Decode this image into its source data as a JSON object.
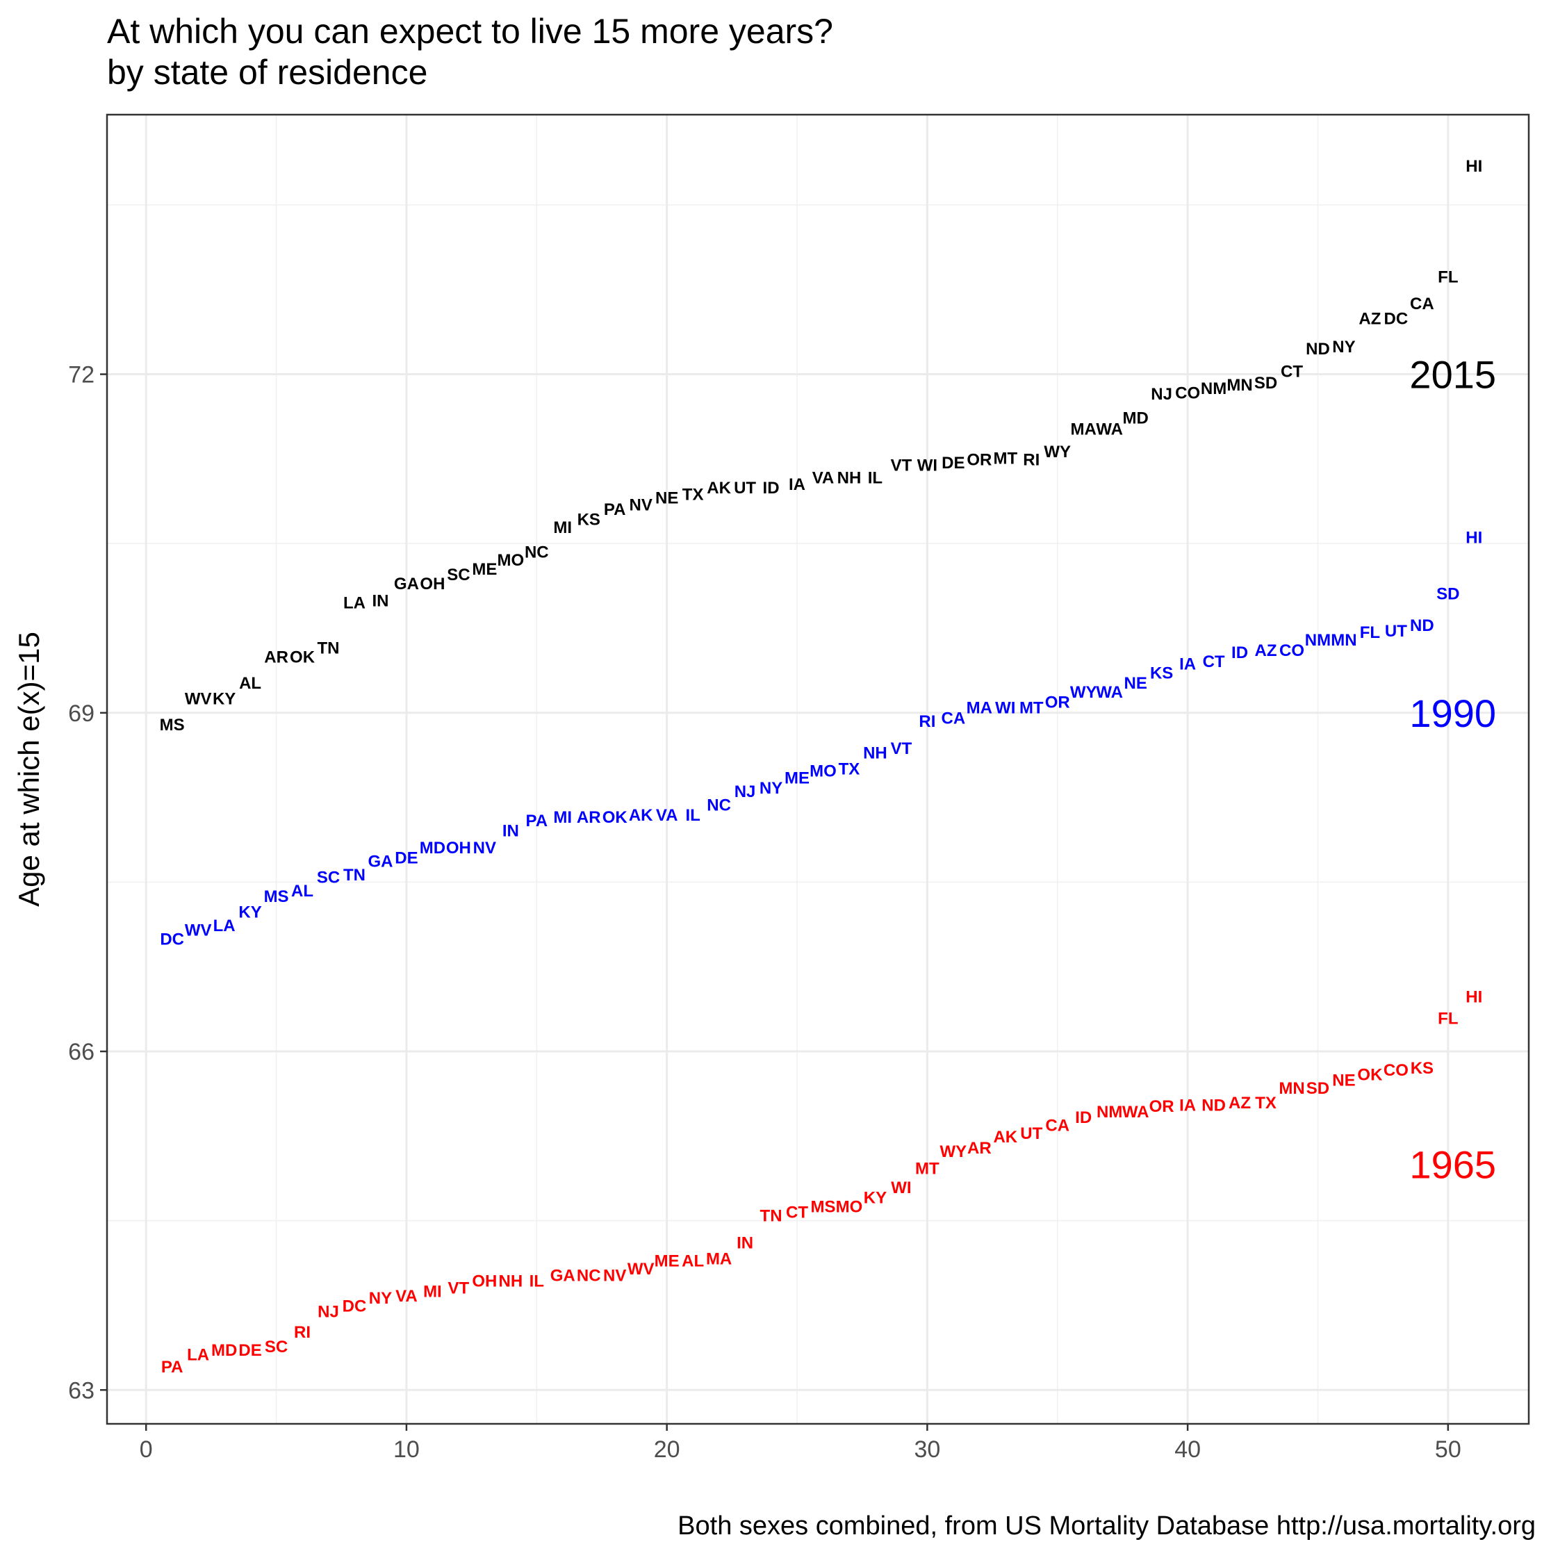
{
  "chart_data": {
    "type": "scatter",
    "title": "At which you can expect to live 15 more years?",
    "subtitle": "by state of residence",
    "xlabel": "",
    "ylabel": "Age at which e(x)=15",
    "caption": "Both sexes combined, from US Mortality Database http://usa.mortality.org",
    "xlim": [
      -1.5,
      53.1
    ],
    "ylim": [
      62.7,
      74.3
    ],
    "x_ticks": [
      0,
      10,
      20,
      30,
      40,
      50
    ],
    "y_ticks": [
      63,
      66,
      69,
      72
    ],
    "grid": true,
    "colors": {
      "1965": "#ff0000",
      "1990": "#0000ff",
      "2015": "#000000"
    },
    "series": [
      {
        "name": "2015",
        "label_value": 72.0,
        "points": [
          {
            "state": "MS",
            "x": 1,
            "y": 68.9
          },
          {
            "state": "WV",
            "x": 2,
            "y": 69.13
          },
          {
            "state": "KY",
            "x": 3,
            "y": 69.13
          },
          {
            "state": "AL",
            "x": 4,
            "y": 69.27
          },
          {
            "state": "AR",
            "x": 5,
            "y": 69.5
          },
          {
            "state": "OK",
            "x": 6,
            "y": 69.5
          },
          {
            "state": "TN",
            "x": 7,
            "y": 69.58
          },
          {
            "state": "LA",
            "x": 8,
            "y": 69.98
          },
          {
            "state": "IN",
            "x": 9,
            "y": 70.0
          },
          {
            "state": "GA",
            "x": 10,
            "y": 70.15
          },
          {
            "state": "OH",
            "x": 11,
            "y": 70.15
          },
          {
            "state": "SC",
            "x": 12,
            "y": 70.23
          },
          {
            "state": "ME",
            "x": 13,
            "y": 70.28
          },
          {
            "state": "MO",
            "x": 14,
            "y": 70.36
          },
          {
            "state": "NC",
            "x": 15,
            "y": 70.43
          },
          {
            "state": "MI",
            "x": 16,
            "y": 70.65
          },
          {
            "state": "KS",
            "x": 17,
            "y": 70.72
          },
          {
            "state": "PA",
            "x": 18,
            "y": 70.81
          },
          {
            "state": "NV",
            "x": 19,
            "y": 70.85
          },
          {
            "state": "NE",
            "x": 20,
            "y": 70.91
          },
          {
            "state": "TX",
            "x": 21,
            "y": 70.94
          },
          {
            "state": "AK",
            "x": 22,
            "y": 71.0
          },
          {
            "state": "UT",
            "x": 23,
            "y": 71.0
          },
          {
            "state": "ID",
            "x": 24,
            "y": 71.0
          },
          {
            "state": "IA",
            "x": 25,
            "y": 71.03
          },
          {
            "state": "VA",
            "x": 26,
            "y": 71.09
          },
          {
            "state": "NH",
            "x": 27,
            "y": 71.09
          },
          {
            "state": "IL",
            "x": 28,
            "y": 71.09
          },
          {
            "state": "VT",
            "x": 29,
            "y": 71.2
          },
          {
            "state": "WI",
            "x": 30,
            "y": 71.2
          },
          {
            "state": "DE",
            "x": 31,
            "y": 71.22
          },
          {
            "state": "OR",
            "x": 32,
            "y": 71.25
          },
          {
            "state": "MT",
            "x": 33,
            "y": 71.26
          },
          {
            "state": "RI",
            "x": 34,
            "y": 71.25
          },
          {
            "state": "WY",
            "x": 35,
            "y": 71.32
          },
          {
            "state": "MA",
            "x": 36,
            "y": 71.52
          },
          {
            "state": "WA",
            "x": 37,
            "y": 71.52
          },
          {
            "state": "MD",
            "x": 38,
            "y": 71.62
          },
          {
            "state": "NJ",
            "x": 39,
            "y": 71.83
          },
          {
            "state": "CO",
            "x": 40,
            "y": 71.84
          },
          {
            "state": "NM",
            "x": 41,
            "y": 71.88
          },
          {
            "state": "MN",
            "x": 42,
            "y": 71.91
          },
          {
            "state": "SD",
            "x": 43,
            "y": 71.93
          },
          {
            "state": "CT",
            "x": 44,
            "y": 72.03
          },
          {
            "state": "ND",
            "x": 45,
            "y": 72.23
          },
          {
            "state": "NY",
            "x": 46,
            "y": 72.25
          },
          {
            "state": "AZ",
            "x": 47,
            "y": 72.5
          },
          {
            "state": "DC",
            "x": 48,
            "y": 72.5
          },
          {
            "state": "CA",
            "x": 49,
            "y": 72.63
          },
          {
            "state": "FL",
            "x": 50,
            "y": 72.87
          },
          {
            "state": "HI",
            "x": 51,
            "y": 73.85
          }
        ]
      },
      {
        "name": "1990",
        "label_value": 69.0,
        "points": [
          {
            "state": "DC",
            "x": 1,
            "y": 67.0
          },
          {
            "state": "WV",
            "x": 2,
            "y": 67.08
          },
          {
            "state": "LA",
            "x": 3,
            "y": 67.12
          },
          {
            "state": "KY",
            "x": 4,
            "y": 67.24
          },
          {
            "state": "MS",
            "x": 5,
            "y": 67.38
          },
          {
            "state": "AL",
            "x": 6,
            "y": 67.43
          },
          {
            "state": "SC",
            "x": 7,
            "y": 67.55
          },
          {
            "state": "TN",
            "x": 8,
            "y": 67.57
          },
          {
            "state": "GA",
            "x": 9,
            "y": 67.69
          },
          {
            "state": "DE",
            "x": 10,
            "y": 67.72
          },
          {
            "state": "MD",
            "x": 11,
            "y": 67.81
          },
          {
            "state": "OH",
            "x": 12,
            "y": 67.81
          },
          {
            "state": "NV",
            "x": 13,
            "y": 67.81
          },
          {
            "state": "IN",
            "x": 14,
            "y": 67.96
          },
          {
            "state": "PA",
            "x": 15,
            "y": 68.05
          },
          {
            "state": "MI",
            "x": 16,
            "y": 68.08
          },
          {
            "state": "AR",
            "x": 17,
            "y": 68.08
          },
          {
            "state": "OK",
            "x": 18,
            "y": 68.08
          },
          {
            "state": "AK",
            "x": 19,
            "y": 68.1
          },
          {
            "state": "VA",
            "x": 20,
            "y": 68.1
          },
          {
            "state": "IL",
            "x": 21,
            "y": 68.1
          },
          {
            "state": "NC",
            "x": 22,
            "y": 68.19
          },
          {
            "state": "NJ",
            "x": 23,
            "y": 68.31
          },
          {
            "state": "NY",
            "x": 24,
            "y": 68.34
          },
          {
            "state": "ME",
            "x": 25,
            "y": 68.43
          },
          {
            "state": "MO",
            "x": 26,
            "y": 68.49
          },
          {
            "state": "TX",
            "x": 27,
            "y": 68.51
          },
          {
            "state": "NH",
            "x": 28,
            "y": 68.65
          },
          {
            "state": "VT",
            "x": 29,
            "y": 68.69
          },
          {
            "state": "RI",
            "x": 30,
            "y": 68.93
          },
          {
            "state": "CA",
            "x": 31,
            "y": 68.96
          },
          {
            "state": "MA",
            "x": 32,
            "y": 69.05
          },
          {
            "state": "WI",
            "x": 33,
            "y": 69.05
          },
          {
            "state": "MT",
            "x": 34,
            "y": 69.05
          },
          {
            "state": "OR",
            "x": 35,
            "y": 69.1
          },
          {
            "state": "WY",
            "x": 36,
            "y": 69.19
          },
          {
            "state": "WA",
            "x": 37,
            "y": 69.19
          },
          {
            "state": "NE",
            "x": 38,
            "y": 69.27
          },
          {
            "state": "KS",
            "x": 39,
            "y": 69.36
          },
          {
            "state": "IA",
            "x": 40,
            "y": 69.44
          },
          {
            "state": "CT",
            "x": 41,
            "y": 69.46
          },
          {
            "state": "ID",
            "x": 42,
            "y": 69.54
          },
          {
            "state": "AZ",
            "x": 43,
            "y": 69.56
          },
          {
            "state": "CO",
            "x": 44,
            "y": 69.56
          },
          {
            "state": "NM",
            "x": 45,
            "y": 69.65
          },
          {
            "state": "MN",
            "x": 46,
            "y": 69.65
          },
          {
            "state": "FL",
            "x": 47,
            "y": 69.72
          },
          {
            "state": "UT",
            "x": 48,
            "y": 69.73
          },
          {
            "state": "ND",
            "x": 49,
            "y": 69.78
          },
          {
            "state": "SD",
            "x": 50,
            "y": 70.06
          },
          {
            "state": "HI",
            "x": 51,
            "y": 70.56
          }
        ]
      },
      {
        "name": "1965",
        "label_value": 65.0,
        "points": [
          {
            "state": "PA",
            "x": 1,
            "y": 63.21
          },
          {
            "state": "LA",
            "x": 2,
            "y": 63.32
          },
          {
            "state": "MD",
            "x": 3,
            "y": 63.36
          },
          {
            "state": "DE",
            "x": 4,
            "y": 63.36
          },
          {
            "state": "SC",
            "x": 5,
            "y": 63.39
          },
          {
            "state": "RI",
            "x": 6,
            "y": 63.52
          },
          {
            "state": "NJ",
            "x": 7,
            "y": 63.7
          },
          {
            "state": "DC",
            "x": 8,
            "y": 63.75
          },
          {
            "state": "NY",
            "x": 9,
            "y": 63.82
          },
          {
            "state": "VA",
            "x": 10,
            "y": 63.84
          },
          {
            "state": "MI",
            "x": 11,
            "y": 63.88
          },
          {
            "state": "VT",
            "x": 12,
            "y": 63.91
          },
          {
            "state": "OH",
            "x": 13,
            "y": 63.97
          },
          {
            "state": "NH",
            "x": 14,
            "y": 63.97
          },
          {
            "state": "IL",
            "x": 15,
            "y": 63.97
          },
          {
            "state": "GA",
            "x": 16,
            "y": 64.02
          },
          {
            "state": "NC",
            "x": 17,
            "y": 64.02
          },
          {
            "state": "NV",
            "x": 18,
            "y": 64.02
          },
          {
            "state": "WV",
            "x": 19,
            "y": 64.08
          },
          {
            "state": "ME",
            "x": 20,
            "y": 64.15
          },
          {
            "state": "AL",
            "x": 21,
            "y": 64.15
          },
          {
            "state": "MA",
            "x": 22,
            "y": 64.17
          },
          {
            "state": "IN",
            "x": 23,
            "y": 64.31
          },
          {
            "state": "TN",
            "x": 24,
            "y": 64.55
          },
          {
            "state": "CT",
            "x": 25,
            "y": 64.58
          },
          {
            "state": "MS",
            "x": 26,
            "y": 64.63
          },
          {
            "state": "MO",
            "x": 27,
            "y": 64.63
          },
          {
            "state": "KY",
            "x": 28,
            "y": 64.71
          },
          {
            "state": "WI",
            "x": 29,
            "y": 64.8
          },
          {
            "state": "MT",
            "x": 30,
            "y": 64.97
          },
          {
            "state": "WY",
            "x": 31,
            "y": 65.12
          },
          {
            "state": "AR",
            "x": 32,
            "y": 65.15
          },
          {
            "state": "AK",
            "x": 33,
            "y": 65.25
          },
          {
            "state": "UT",
            "x": 34,
            "y": 65.28
          },
          {
            "state": "CA",
            "x": 35,
            "y": 65.35
          },
          {
            "state": "ID",
            "x": 36,
            "y": 65.42
          },
          {
            "state": "NM",
            "x": 37,
            "y": 65.47
          },
          {
            "state": "WA",
            "x": 38,
            "y": 65.47
          },
          {
            "state": "OR",
            "x": 39,
            "y": 65.52
          },
          {
            "state": "IA",
            "x": 40,
            "y": 65.53
          },
          {
            "state": "ND",
            "x": 41,
            "y": 65.53
          },
          {
            "state": "AZ",
            "x": 42,
            "y": 65.55
          },
          {
            "state": "TX",
            "x": 43,
            "y": 65.55
          },
          {
            "state": "MN",
            "x": 44,
            "y": 65.68
          },
          {
            "state": "SD",
            "x": 45,
            "y": 65.68
          },
          {
            "state": "NE",
            "x": 46,
            "y": 65.75
          },
          {
            "state": "OK",
            "x": 47,
            "y": 65.8
          },
          {
            "state": "CO",
            "x": 48,
            "y": 65.84
          },
          {
            "state": "KS",
            "x": 49,
            "y": 65.86
          },
          {
            "state": "FL",
            "x": 50,
            "y": 66.3
          },
          {
            "state": "HI",
            "x": 51,
            "y": 66.49
          }
        ]
      }
    ]
  }
}
